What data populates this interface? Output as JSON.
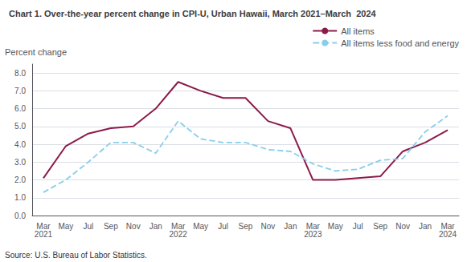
{
  "chart_data": {
    "type": "line",
    "title": "Chart 1. Over-the-year percent change in CPI-U, Urban Hawaii, March 2021–March  2024",
    "ylabel": "Percent change",
    "annotations": [
      "Source: U.S. Bureau of Labor Statistics."
    ],
    "categories": [
      "Mar\n2021",
      "May",
      "Jul",
      "Sep",
      "Nov",
      "Jan",
      "Mar\n2022",
      "May",
      "Jul",
      "Sep",
      "Nov",
      "Jan",
      "Mar\n2023",
      "May",
      "Jul",
      "Sep",
      "Nov",
      "Jan",
      "Mar\n2024"
    ],
    "series": [
      {
        "name": "All items",
        "color": "#8B1A4A",
        "line_style": "solid",
        "values": [
          2.1,
          3.9,
          4.6,
          4.9,
          5.0,
          6.0,
          7.5,
          7.0,
          6.6,
          6.6,
          5.3,
          4.9,
          2.0,
          2.0,
          2.1,
          2.2,
          3.6,
          4.1,
          4.8
        ]
      },
      {
        "name": "All items less food and energy",
        "color": "#87CEEB",
        "line_style": "dashed",
        "values": [
          1.3,
          2.0,
          3.0,
          4.1,
          4.1,
          3.5,
          5.3,
          4.3,
          4.1,
          4.1,
          3.7,
          3.6,
          2.9,
          2.5,
          2.6,
          3.1,
          3.2,
          4.7,
          5.6
        ]
      }
    ],
    "ylim": [
      0.0,
      8.5
    ],
    "yticks": [
      {
        "value": 0,
        "label": "0.0"
      },
      {
        "value": 1,
        "label": "1.0"
      },
      {
        "value": 2,
        "label": "2.0"
      },
      {
        "value": 3,
        "label": "3.0"
      },
      {
        "value": 4,
        "label": "4.0"
      },
      {
        "value": 5,
        "label": "5.0"
      },
      {
        "value": 6,
        "label": "6.0"
      },
      {
        "value": 7,
        "label": "7.0"
      },
      {
        "value": 8,
        "label": "8.0"
      }
    ],
    "grid": true,
    "legend": "upper right"
  }
}
